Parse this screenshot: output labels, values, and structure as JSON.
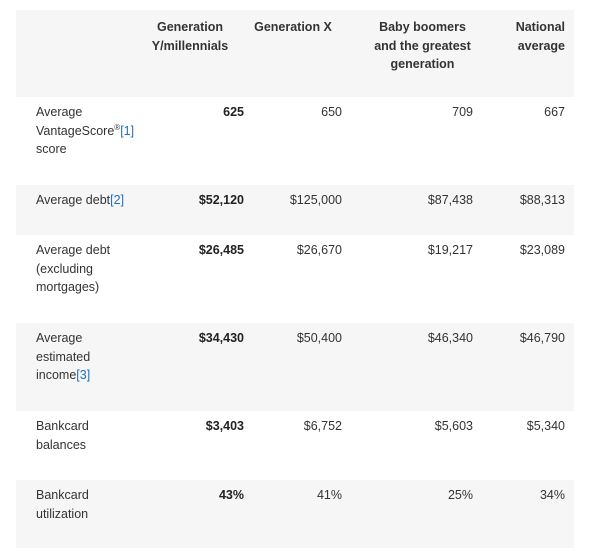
{
  "headers": [
    "",
    "Generation Y/millennials",
    "Generation X",
    "Baby boomers and the greatest generation",
    "National average"
  ],
  "rows": [
    {
      "label": "Average VantageScore",
      "sup": "®",
      "ref": "[1]",
      "after": " score",
      "values": [
        "625",
        "650",
        "709",
        "667"
      ]
    },
    {
      "label": "Average debt",
      "sup": "",
      "ref": "[2]",
      "after": "",
      "values": [
        "$52,120",
        "$125,000",
        "$87,438",
        "$88,313"
      ]
    },
    {
      "label": "Average debt (excluding mortgages)",
      "sup": "",
      "ref": "",
      "after": "",
      "values": [
        "$26,485",
        "$26,670",
        "$19,217",
        "$23,089"
      ]
    },
    {
      "label": "Average estimated income",
      "sup": "",
      "ref": "[3]",
      "after": "",
      "values": [
        "$34,430",
        "$50,400",
        "$46,340",
        "$46,790"
      ]
    },
    {
      "label": "Bankcard balances",
      "sup": "",
      "ref": "",
      "after": "",
      "values": [
        "$3,403",
        "$6,752",
        "$5,603",
        "$5,340"
      ]
    },
    {
      "label": "Bankcard utilization",
      "sup": "",
      "ref": "",
      "after": "",
      "values": [
        "43%",
        "41%",
        "25%",
        "34%"
      ]
    }
  ]
}
